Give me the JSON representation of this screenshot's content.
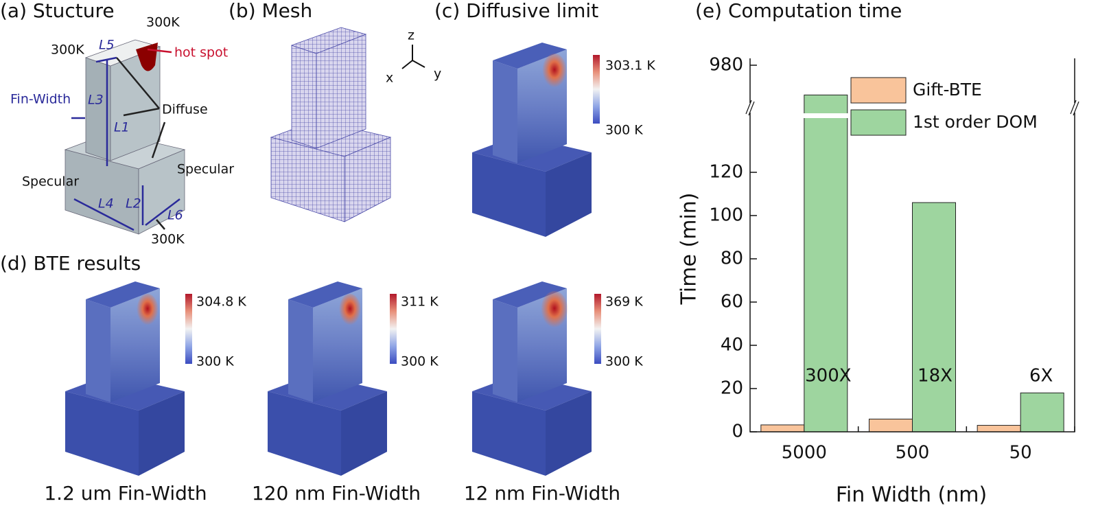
{
  "panels": {
    "a": {
      "title": "(a) Stucture",
      "labels": [
        "300K",
        "300K",
        "hot spot",
        "L5",
        "Fin-Width",
        "L3",
        "L1",
        "Diffuse",
        "Specular",
        "Specular",
        "L4",
        "L2",
        "L6",
        "300K"
      ]
    },
    "b": {
      "title": "(b) Mesh",
      "axes": [
        "z",
        "x",
        "y"
      ]
    },
    "c": {
      "title": "(c) Diffusive limit",
      "colorbar": [
        "303.1 K",
        "300 K"
      ]
    },
    "d": {
      "title": "(d) BTE results",
      "colorbars": [
        [
          "304.8 K",
          "300 K"
        ],
        [
          "311 K",
          "300 K"
        ],
        [
          "369 K",
          "300 K"
        ]
      ],
      "captions": [
        "1.2 um Fin-Width",
        "120 nm Fin-Width",
        "12 nm Fin-Width"
      ]
    }
  },
  "chart_data": {
    "type": "bar",
    "title": "(e) Computation time",
    "x_label": "Fin Width (nm)",
    "y_label": "Time (min)",
    "categories": [
      "5000",
      "500",
      "50"
    ],
    "series": [
      {
        "name": "Gift-BTE",
        "color": "#f9c49b",
        "values": [
          3.2,
          5.9,
          3.0
        ]
      },
      {
        "name": "1st order DOM",
        "color": "#9ed59f",
        "values": [
          960,
          106,
          18
        ]
      }
    ],
    "annotations": [
      "300X",
      "18X",
      "6X"
    ],
    "ylim": [
      0,
      980
    ],
    "axis_break": [
      140,
      950
    ],
    "yticks": [
      0,
      20,
      40,
      60,
      80,
      100,
      120,
      980
    ]
  }
}
